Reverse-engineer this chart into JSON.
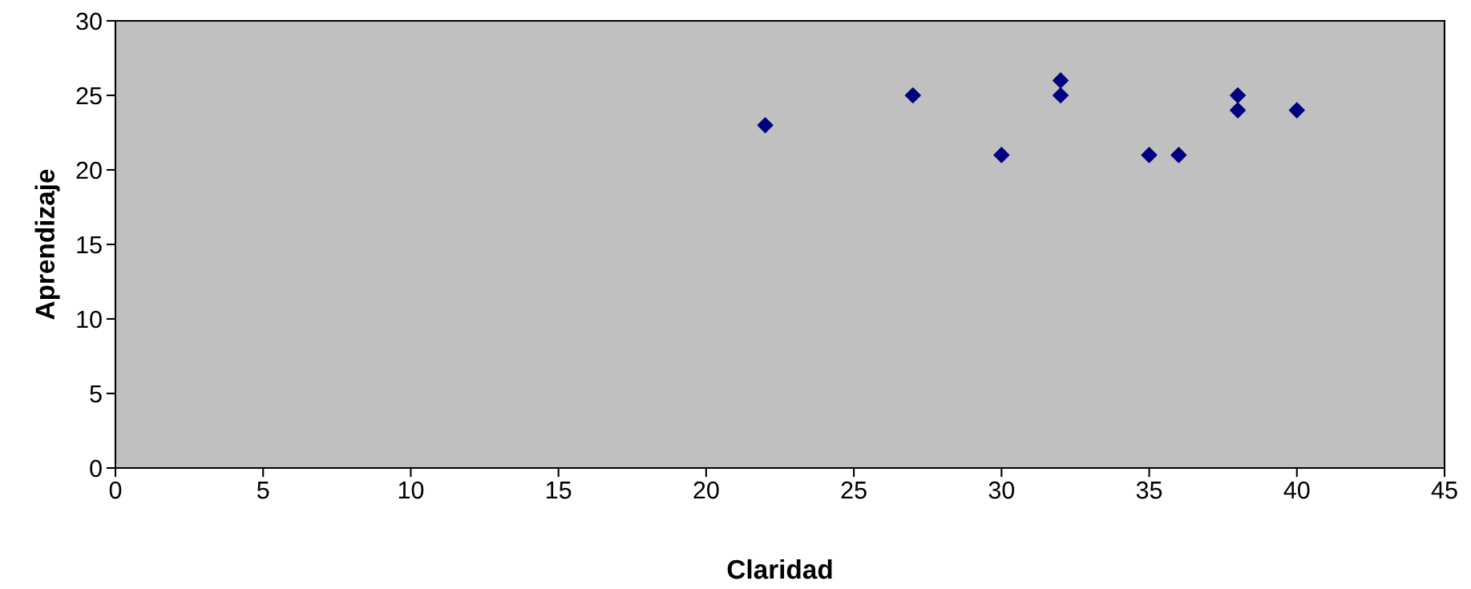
{
  "chart_data": {
    "type": "scatter",
    "xlabel": "Claridad",
    "ylabel": "Aprendizaje",
    "x": [
      22,
      27,
      30,
      32,
      32,
      35,
      36,
      38,
      38,
      40
    ],
    "values": [
      23,
      25,
      21,
      26,
      25,
      21,
      21,
      25,
      24,
      24
    ],
    "color": "#000080",
    "marker": "diamond",
    "xlim": [
      0,
      45
    ],
    "xticks": [
      0,
      5,
      10,
      15,
      20,
      25,
      30,
      35,
      40,
      45
    ],
    "ylim": [
      0,
      30
    ],
    "yticks": [
      0,
      5,
      10,
      15,
      20,
      25,
      30
    ],
    "grid": false
  }
}
